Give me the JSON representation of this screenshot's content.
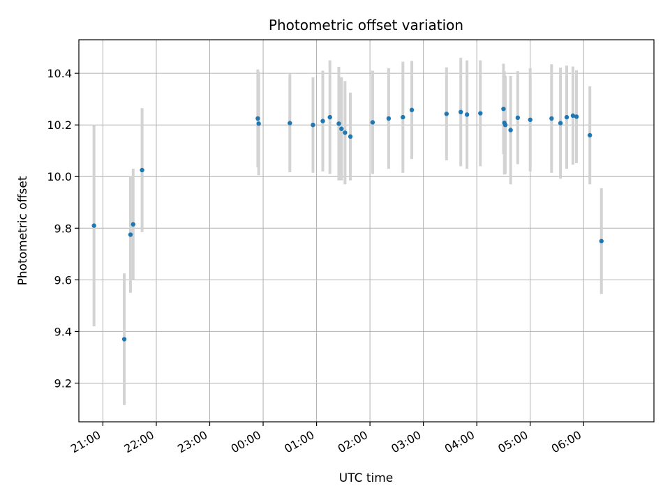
{
  "chart_data": {
    "type": "scatter",
    "title": "Photometric offset variation",
    "xlabel": "UTC time",
    "ylabel": "Photometric offset",
    "x_unit": "time (UTC, HH:MM, night spanning midnight)",
    "xlim": [
      "20:33",
      "07:19"
    ],
    "ylim": [
      9.05,
      10.53
    ],
    "grid": true,
    "x_ticks": [
      "21:00",
      "22:00",
      "23:00",
      "00:00",
      "01:00",
      "02:00",
      "03:00",
      "04:00",
      "05:00",
      "06:00"
    ],
    "y_ticks": [
      "9.2",
      "9.4",
      "9.6",
      "9.8",
      "10.0",
      "10.2",
      "10.4"
    ],
    "point_color": "#1f77b4",
    "errorbar_color": "#d3d3d3",
    "points": [
      {
        "x": "20:50",
        "y": 9.81,
        "err": 0.39
      },
      {
        "x": "21:24",
        "y": 9.37,
        "err": 0.255
      },
      {
        "x": "21:31",
        "y": 9.775,
        "err": 0.225
      },
      {
        "x": "21:34",
        "y": 9.815,
        "err": 0.215
      },
      {
        "x": "21:44",
        "y": 10.025,
        "err": 0.24
      },
      {
        "x": "23:54",
        "y": 10.225,
        "err": 0.19
      },
      {
        "x": "23:55",
        "y": 10.205,
        "err": 0.2
      },
      {
        "x": "00:30",
        "y": 10.207,
        "err": 0.19
      },
      {
        "x": "00:56",
        "y": 10.2,
        "err": 0.185
      },
      {
        "x": "01:07",
        "y": 10.215,
        "err": 0.195
      },
      {
        "x": "01:15",
        "y": 10.23,
        "err": 0.22
      },
      {
        "x": "01:25",
        "y": 10.205,
        "err": 0.22
      },
      {
        "x": "01:28",
        "y": 10.185,
        "err": 0.2
      },
      {
        "x": "01:32",
        "y": 10.17,
        "err": 0.2
      },
      {
        "x": "01:38",
        "y": 10.155,
        "err": 0.17
      },
      {
        "x": "02:03",
        "y": 10.21,
        "err": 0.2
      },
      {
        "x": "02:21",
        "y": 10.225,
        "err": 0.195
      },
      {
        "x": "02:37",
        "y": 10.23,
        "err": 0.215
      },
      {
        "x": "02:47",
        "y": 10.258,
        "err": 0.19
      },
      {
        "x": "03:26",
        "y": 10.243,
        "err": 0.18
      },
      {
        "x": "03:42",
        "y": 10.25,
        "err": 0.21
      },
      {
        "x": "03:49",
        "y": 10.24,
        "err": 0.21
      },
      {
        "x": "04:04",
        "y": 10.245,
        "err": 0.205
      },
      {
        "x": "04:30",
        "y": 10.262,
        "err": 0.175
      },
      {
        "x": "04:31",
        "y": 10.208,
        "err": 0.2
      },
      {
        "x": "04:32",
        "y": 10.2,
        "err": 0.19
      },
      {
        "x": "04:38",
        "y": 10.18,
        "err": 0.21
      },
      {
        "x": "04:46",
        "y": 10.228,
        "err": 0.18
      },
      {
        "x": "05:00",
        "y": 10.22,
        "err": 0.2
      },
      {
        "x": "05:24",
        "y": 10.225,
        "err": 0.21
      },
      {
        "x": "05:34",
        "y": 10.207,
        "err": 0.215
      },
      {
        "x": "05:41",
        "y": 10.23,
        "err": 0.2
      },
      {
        "x": "05:48",
        "y": 10.236,
        "err": 0.19
      },
      {
        "x": "05:52",
        "y": 10.232,
        "err": 0.18
      },
      {
        "x": "06:07",
        "y": 10.16,
        "err": 0.19
      },
      {
        "x": "06:20",
        "y": 9.75,
        "err": 0.205
      }
    ]
  }
}
